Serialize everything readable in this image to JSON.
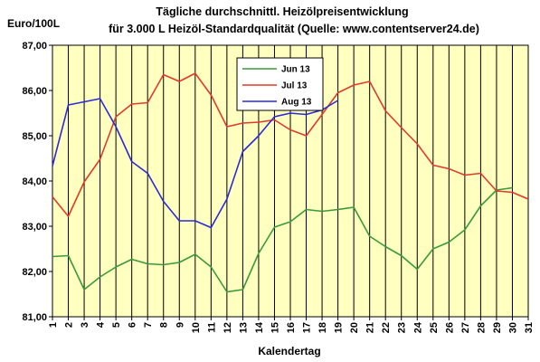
{
  "chart_data": {
    "type": "line",
    "title": "Tägliche durchschnittl. Heizölpreisentwicklung",
    "subtitle": "für 3.000 L Heizöl-Standardqualität (Quelle: www.contentserver24.de)",
    "ylabel": "Euro/100L",
    "xlabel": "Kalendertag",
    "ylim": [
      81,
      87
    ],
    "yticks": [
      "81,00",
      "82,00",
      "83,00",
      "84,00",
      "85,00",
      "86,00",
      "87,00"
    ],
    "categories": [
      "1",
      "2",
      "3",
      "4",
      "5",
      "6",
      "7",
      "8",
      "9",
      "10",
      "11",
      "12",
      "13",
      "14",
      "15",
      "16",
      "17",
      "18",
      "19",
      "20",
      "21",
      "22",
      "23",
      "24",
      "25",
      "26",
      "27",
      "28",
      "29",
      "30",
      "31"
    ],
    "grid": "vertical",
    "legend_position": "top-center",
    "series": [
      {
        "name": "Jun 13",
        "color": "#3a9a3a",
        "values": [
          82.33,
          82.35,
          81.6,
          81.88,
          82.1,
          82.27,
          82.17,
          82.15,
          82.2,
          82.38,
          82.1,
          81.55,
          81.6,
          82.4,
          82.98,
          83.1,
          83.37,
          83.33,
          83.37,
          83.42,
          82.78,
          82.55,
          82.35,
          82.05,
          82.5,
          82.65,
          82.92,
          83.45,
          83.8,
          83.85,
          null
        ]
      },
      {
        "name": "Jul 13",
        "color": "#e03a2a",
        "values": [
          83.65,
          83.22,
          83.98,
          84.48,
          85.42,
          85.7,
          85.73,
          86.35,
          86.2,
          86.38,
          85.9,
          85.2,
          85.28,
          85.3,
          85.35,
          85.13,
          85.0,
          85.47,
          85.95,
          86.12,
          86.2,
          85.55,
          85.18,
          84.82,
          84.35,
          84.27,
          84.13,
          84.17,
          83.78,
          83.75,
          83.6
        ]
      },
      {
        "name": "Aug 13",
        "color": "#2a2ad8",
        "values": [
          84.33,
          85.68,
          85.75,
          85.82,
          85.2,
          84.43,
          84.17,
          83.55,
          83.12,
          83.12,
          82.97,
          83.6,
          84.65,
          85.0,
          85.42,
          85.5,
          85.47,
          85.57,
          85.78,
          null,
          null,
          null,
          null,
          null,
          null,
          null,
          null,
          null,
          null,
          null,
          null
        ]
      }
    ]
  }
}
